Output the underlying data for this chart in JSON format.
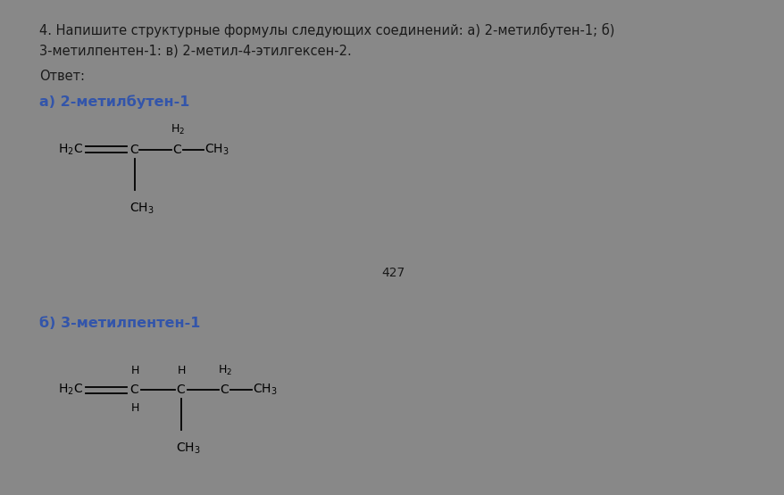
{
  "bg_top": "#ffffff",
  "bg_bottom": "#efefef",
  "bg_divider": "#888888",
  "text_color_black": "#1a1a1a",
  "text_color_blue": "#3355aa",
  "title_text": "4. Напишите структурные формулы следующих соединений: а) 2-метилбутен-1; б)\n3-метилпентен-1: в) 2-метил-4-этилгексен-2.",
  "otvet_text": "Ответ:",
  "label_a": "а) 2-метилбутен-1",
  "label_b": "б) 3-метилпентен-1",
  "page_number": "427",
  "font_size_title": 10.5,
  "font_size_label": 11.5,
  "font_size_formula": 10,
  "font_size_small": 9,
  "font_size_page": 10
}
